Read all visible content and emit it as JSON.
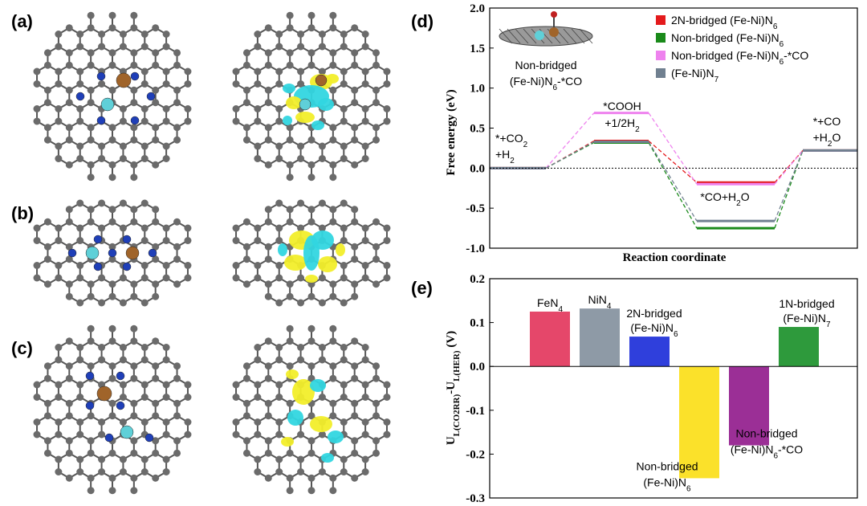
{
  "panels": {
    "a": "(a)",
    "b": "(b)",
    "c": "(c)",
    "d": "(d)",
    "e": "(e)"
  },
  "colors": {
    "carbon": "#6b6b6b",
    "nitrogen": "#1f3fb8",
    "iron": "#a0642a",
    "nickel": "#5fd0d8",
    "density_yellow": "#f2ee2a",
    "density_cyan": "#32d6e0"
  },
  "chart_data": [
    {
      "type": "line",
      "title": "",
      "xlabel": "Reaction coordinate",
      "ylabel": "Free energy (eV)",
      "ylim": [
        -1.0,
        2.0
      ],
      "yticks": [
        "2.0",
        "1.5",
        "1.0",
        "0.5",
        "0.0",
        "-0.5",
        "-1.0"
      ],
      "states": [
        "*+CO2 +H2",
        "*COOH +1/2H2",
        "*CO+H2O",
        "*+CO +H2O"
      ],
      "state_labels": {
        "s0_line1": "*+CO",
        "s0_sub": "2",
        "s0_line2": "+H",
        "s0_sub2": "2",
        "s1_line1": "*COOH",
        "s1_line2": "+1/2H",
        "s1_sub": "2",
        "s2_line1": "*CO+H",
        "s2_sub": "2",
        "s2_tail": "O",
        "s3_line1": "*+CO",
        "s3_line2": "+H",
        "s3_sub": "2",
        "s3_tail": "O"
      },
      "series": [
        {
          "name": "2N-bridged (Fe-Ni)N6",
          "legend_main": "2N-bridged (Fe-Ni)N",
          "legend_sub": "6",
          "legend_tail": "",
          "color": "#e41a1c",
          "values": [
            0.0,
            0.34,
            -0.18,
            0.22
          ]
        },
        {
          "name": "Non-bridged (Fe-Ni)N6",
          "legend_main": "Non-bridged (Fe-Ni)N",
          "legend_sub": "6",
          "legend_tail": "",
          "color": "#1a8a1a",
          "values": [
            0.0,
            0.32,
            -0.75,
            0.22
          ]
        },
        {
          "name": "Non-bridged (Fe-Ni)N6-*CO",
          "legend_main": "Non-bridged (Fe-Ni)N",
          "legend_sub": "6",
          "legend_tail": "-*CO",
          "color": "#ee82ee",
          "values": [
            0.0,
            0.69,
            -0.2,
            0.22
          ]
        },
        {
          "name": "(Fe-Ni)N7",
          "legend_main": "(Fe-Ni)N",
          "legend_sub": "7",
          "legend_tail": "",
          "color": "#708090",
          "values": [
            0.0,
            0.33,
            -0.66,
            0.22
          ]
        }
      ],
      "inset_caption_line1": "Non-bridged",
      "inset_caption_line2_main": "(Fe-Ni)N",
      "inset_caption_line2_sub": "6",
      "inset_caption_line2_tail": "-*CO"
    },
    {
      "type": "bar",
      "ylabel": "U_L(CO2RR) - U_L(HER) (V)",
      "ylim": [
        -0.3,
        0.2
      ],
      "yticks": [
        "0.2",
        "0.1",
        "0.0",
        "-0.1",
        "-0.2",
        "-0.3"
      ],
      "categories": [
        "FeN4",
        "NiN4",
        "2N-bridged (Fe-Ni)N6",
        "Non-bridged (Fe-Ni)N6",
        "Non-bridged (Fe-Ni)N6-*CO",
        "1N-bridged (Fe-Ni)N7"
      ],
      "values": [
        0.125,
        0.132,
        0.068,
        -0.255,
        -0.18,
        0.09
      ],
      "colors": [
        "#e5476a",
        "#8e9aa6",
        "#2f3fdc",
        "#fbe12a",
        "#9b2f96",
        "#2e9a3c"
      ],
      "labels": [
        {
          "l1": "FeN",
          "l1sub": "4",
          "l2": "",
          "l2sub": "",
          "l2tail": ""
        },
        {
          "l1": "NiN",
          "l1sub": "4",
          "l2": "",
          "l2sub": "",
          "l2tail": ""
        },
        {
          "l1": "2N-bridged",
          "l1sub": "",
          "l2": "(Fe-Ni)N",
          "l2sub": "6",
          "l2tail": ""
        },
        {
          "l1": "Non-bridged",
          "l1sub": "",
          "l2": "(Fe-Ni)N",
          "l2sub": "6",
          "l2tail": ""
        },
        {
          "l1": "Non-bridged",
          "l1sub": "",
          "l2": "(Fe-Ni)N",
          "l2sub": "6",
          "l2tail": "-*CO"
        },
        {
          "l1": "1N-bridged",
          "l1sub": "",
          "l2": "(Fe-Ni)N",
          "l2sub": "7",
          "l2tail": ""
        }
      ],
      "ylabel_parts": {
        "u1": "U",
        "s1": "L(CO2RR)",
        "dash": "-U",
        "s2": "L(HER)",
        "unit": " (V)"
      }
    }
  ]
}
